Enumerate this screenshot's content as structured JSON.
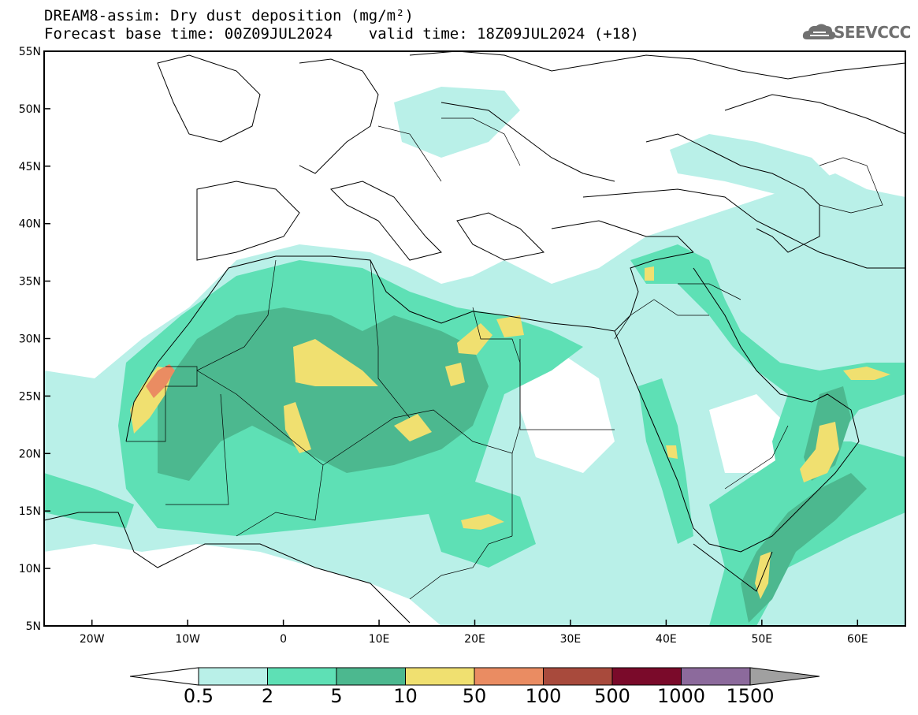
{
  "title": {
    "line1": "DREAM8-assim: Dry dust deposition (mg/m²)",
    "line2": "Forecast base time: 00Z09JUL2024    valid time: 18Z09JUL2024 (+18)"
  },
  "logo": {
    "text": "SEEVCCC",
    "icon": "cloud-icon"
  },
  "map": {
    "lat_range": [
      5,
      55
    ],
    "lon_range": [
      -25,
      65
    ],
    "lat_ticks": [
      "5N",
      "10N",
      "15N",
      "20N",
      "25N",
      "30N",
      "35N",
      "40N",
      "45N",
      "50N",
      "55N"
    ],
    "lon_ticks": [
      "20W",
      "10W",
      "0",
      "10E",
      "20E",
      "30E",
      "40E",
      "50E",
      "60E"
    ]
  },
  "colorbar": {
    "labels": [
      "0.5",
      "2",
      "5",
      "10",
      "50",
      "100",
      "500",
      "1000",
      "1500"
    ],
    "colors": [
      "#b9f0e8",
      "#5ee0b5",
      "#4cb88f",
      "#f0e070",
      "#ea8c62",
      "#a84a3c",
      "#7a0a2a",
      "#8c6a9c"
    ],
    "over_color": "#a0a0a0",
    "under_color": "#ffffff"
  },
  "legend_colors": {
    "c1": "#b9f0e8",
    "c2": "#5ee0b5",
    "c3": "#4cb88f",
    "c4": "#f0e070",
    "c5": "#ea8c62"
  }
}
